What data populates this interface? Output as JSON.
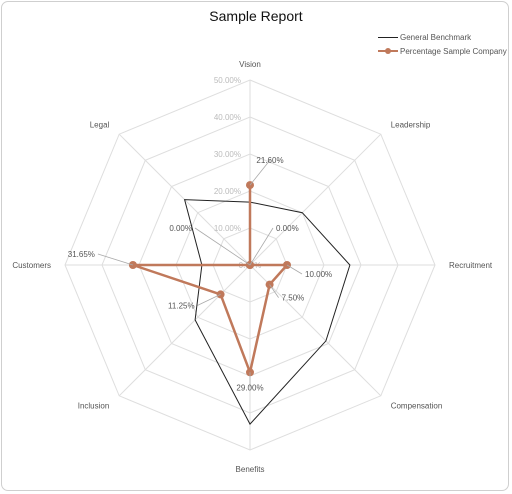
{
  "chart_data": {
    "type": "radar",
    "title": "Sample Report",
    "categories": [
      "Vision",
      "Leadership",
      "Recruitment",
      "Compensation",
      "Benefits",
      "Inclusion",
      "Customers",
      "Legal"
    ],
    "radial_ticks": [
      "10.00%",
      "20.00%",
      "30.00%",
      "40.00%",
      "50.00%"
    ],
    "rmax": 50,
    "series": [
      {
        "name": "General Benchmark",
        "values": [
          17,
          20,
          27,
          29,
          43,
          21,
          13,
          25
        ],
        "color": "#222222"
      },
      {
        "name": "Percentage Sample Company",
        "values": [
          21.6,
          0.0,
          10.0,
          7.5,
          29.0,
          11.25,
          31.65,
          0.0
        ],
        "labels": [
          "21.60%",
          "0.00%",
          "10.00%",
          "7.50%",
          "29.00%",
          "11.25%",
          "31.65%",
          "0.00%"
        ],
        "color": "#c0795b"
      }
    ],
    "legend": "top-right",
    "grid": true
  }
}
